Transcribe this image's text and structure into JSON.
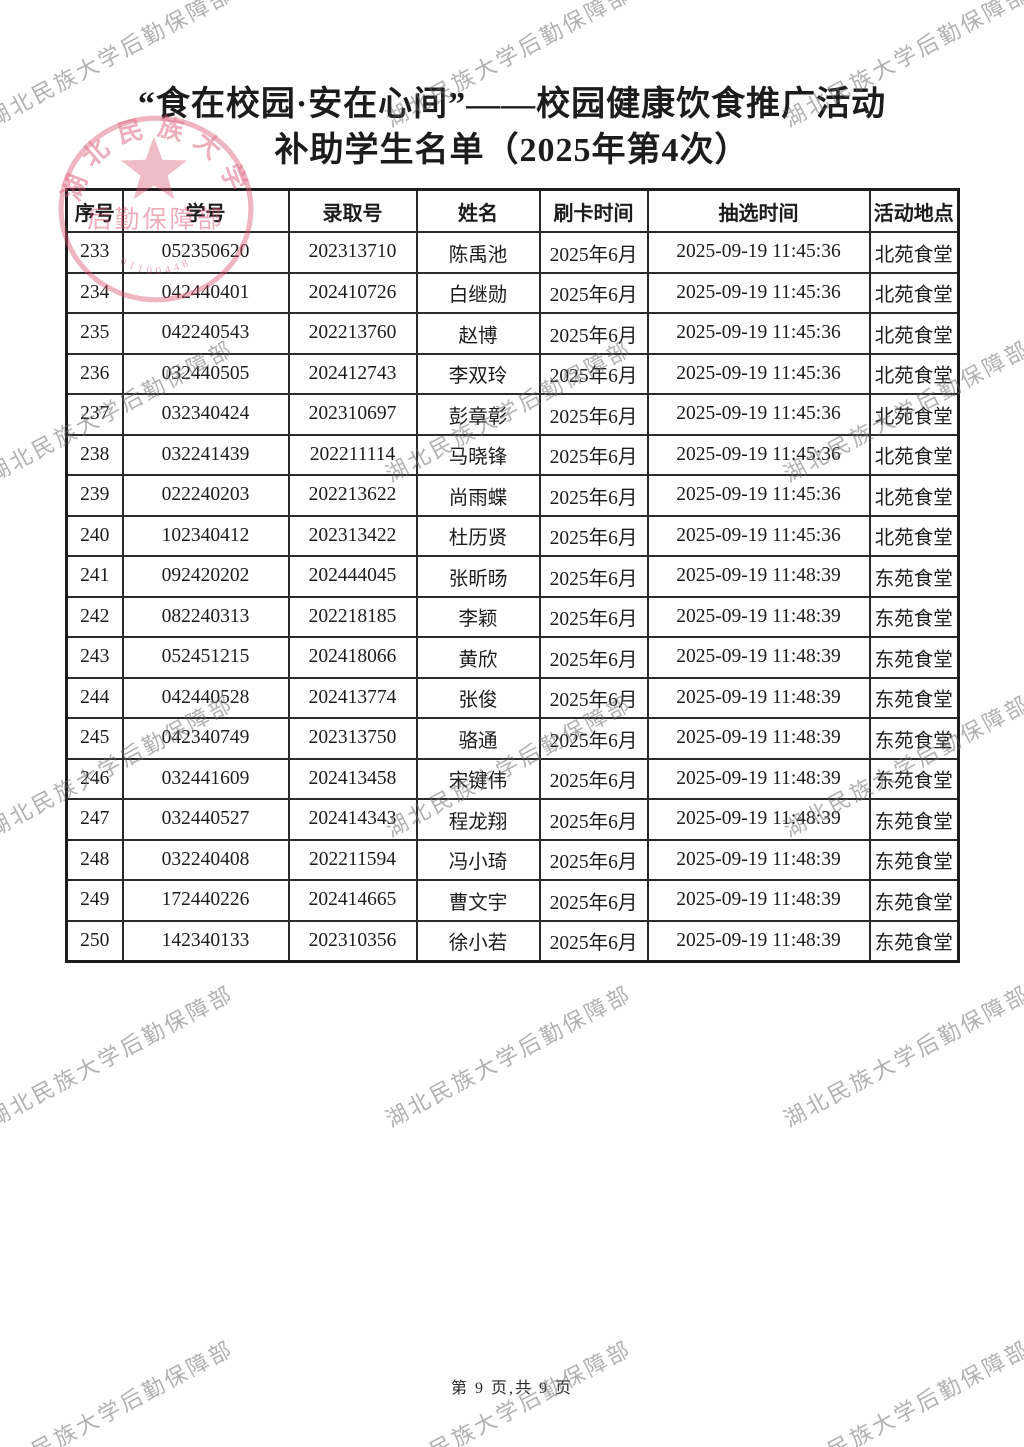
{
  "page": {
    "title_line1": "“食在校园·安在心间”——校园健康饮食推广活动",
    "title_line2": "补助学生名单（2025年第4次）",
    "footer": "第 9 页,共 9 页"
  },
  "table": {
    "columns": [
      "序号",
      "学号",
      "录取号",
      "姓名",
      "刷卡时间",
      "抽选时间",
      "活动地点"
    ],
    "rows": [
      [
        "233",
        "052350620",
        "202313710",
        "陈禹池",
        "2025年6月",
        "2025-09-19 11:45:36",
        "北苑食堂"
      ],
      [
        "234",
        "042440401",
        "202410726",
        "白继勋",
        "2025年6月",
        "2025-09-19 11:45:36",
        "北苑食堂"
      ],
      [
        "235",
        "042240543",
        "202213760",
        "赵博",
        "2025年6月",
        "2025-09-19 11:45:36",
        "北苑食堂"
      ],
      [
        "236",
        "032440505",
        "202412743",
        "李双玲",
        "2025年6月",
        "2025-09-19 11:45:36",
        "北苑食堂"
      ],
      [
        "237",
        "032340424",
        "202310697",
        "彭章彰",
        "2025年6月",
        "2025-09-19 11:45:36",
        "北苑食堂"
      ],
      [
        "238",
        "032241439",
        "202211114",
        "马晓锋",
        "2025年6月",
        "2025-09-19 11:45:36",
        "北苑食堂"
      ],
      [
        "239",
        "022240203",
        "202213622",
        "尚雨蝶",
        "2025年6月",
        "2025-09-19 11:45:36",
        "北苑食堂"
      ],
      [
        "240",
        "102340412",
        "202313422",
        "杜历贤",
        "2025年6月",
        "2025-09-19 11:45:36",
        "北苑食堂"
      ],
      [
        "241",
        "092420202",
        "202444045",
        "张昕旸",
        "2025年6月",
        "2025-09-19 11:48:39",
        "东苑食堂"
      ],
      [
        "242",
        "082240313",
        "202218185",
        "李颖",
        "2025年6月",
        "2025-09-19 11:48:39",
        "东苑食堂"
      ],
      [
        "243",
        "052451215",
        "202418066",
        "黄欣",
        "2025年6月",
        "2025-09-19 11:48:39",
        "东苑食堂"
      ],
      [
        "244",
        "042440528",
        "202413774",
        "张俊",
        "2025年6月",
        "2025-09-19 11:48:39",
        "东苑食堂"
      ],
      [
        "245",
        "042340749",
        "202313750",
        "骆通",
        "2025年6月",
        "2025-09-19 11:48:39",
        "东苑食堂"
      ],
      [
        "246",
        "032441609",
        "202413458",
        "宋键伟",
        "2025年6月",
        "2025-09-19 11:48:39",
        "东苑食堂"
      ],
      [
        "247",
        "032440527",
        "202414343",
        "程龙翔",
        "2025年6月",
        "2025-09-19 11:48:39",
        "东苑食堂"
      ],
      [
        "248",
        "032240408",
        "202211594",
        "冯小琦",
        "2025年6月",
        "2025-09-19 11:48:39",
        "东苑食堂"
      ],
      [
        "249",
        "172440226",
        "202414665",
        "曹文宇",
        "2025年6月",
        "2025-09-19 11:48:39",
        "东苑食堂"
      ],
      [
        "250",
        "142340133",
        "202310356",
        "徐小若",
        "2025年6月",
        "2025-09-19 11:48:39",
        "东苑食堂"
      ]
    ]
  },
  "watermark": {
    "text": "湖北民族大学后勤保障部",
    "color": "#696969"
  },
  "stamp": {
    "arc_text": "湖北民族大学",
    "label": "后勤保障部",
    "code": "01100448",
    "color": "#d9536d"
  }
}
